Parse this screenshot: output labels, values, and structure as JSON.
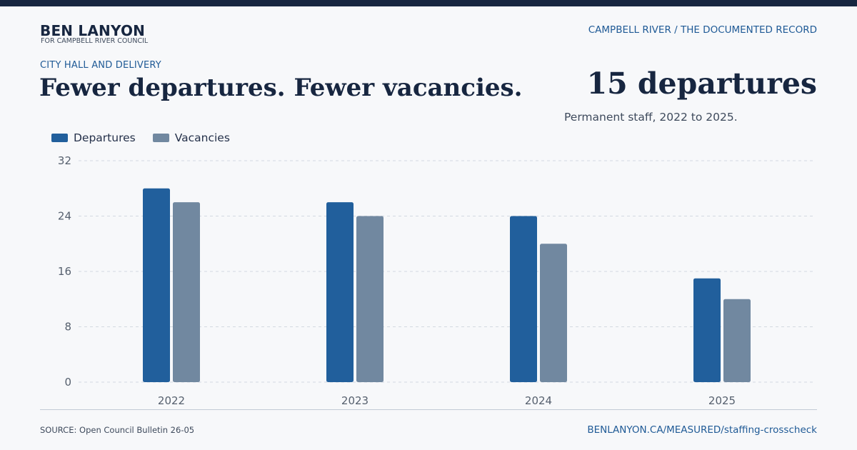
{
  "header": {
    "brand_name": "BEN LANYON",
    "brand_subtitle": "FOR CAMPBELL RIVER COUNCIL",
    "top_right": "CAMPBELL RIVER / THE DOCUMENTED RECORD"
  },
  "headline": {
    "kicker": "CITY HALL AND DELIVERY",
    "title": "Fewer departures. Fewer vacancies.",
    "big_stat": "15 departures",
    "stat_subtitle": "Permanent staff, 2022 to 2025."
  },
  "footer": {
    "source": "SOURCE: Open Council Bulletin 26-05",
    "link": "BENLANYON.CA/MEASURED/staffing-crosscheck"
  },
  "colors": {
    "departures": "#215f9c",
    "vacancies": "#7188a0",
    "grid": "#d3d9e1",
    "axis_text": "#56606e"
  },
  "chart_data": {
    "type": "bar",
    "categories": [
      "2022",
      "2023",
      "2024",
      "2025"
    ],
    "series": [
      {
        "name": "Departures",
        "values": [
          28,
          26,
          24,
          15
        ]
      },
      {
        "name": "Vacancies",
        "values": [
          26,
          24,
          20,
          12
        ]
      }
    ],
    "ylim": [
      0,
      32
    ],
    "yticks": [
      0,
      8,
      16,
      24,
      32
    ],
    "grid": true,
    "legend_position": "top-left"
  }
}
